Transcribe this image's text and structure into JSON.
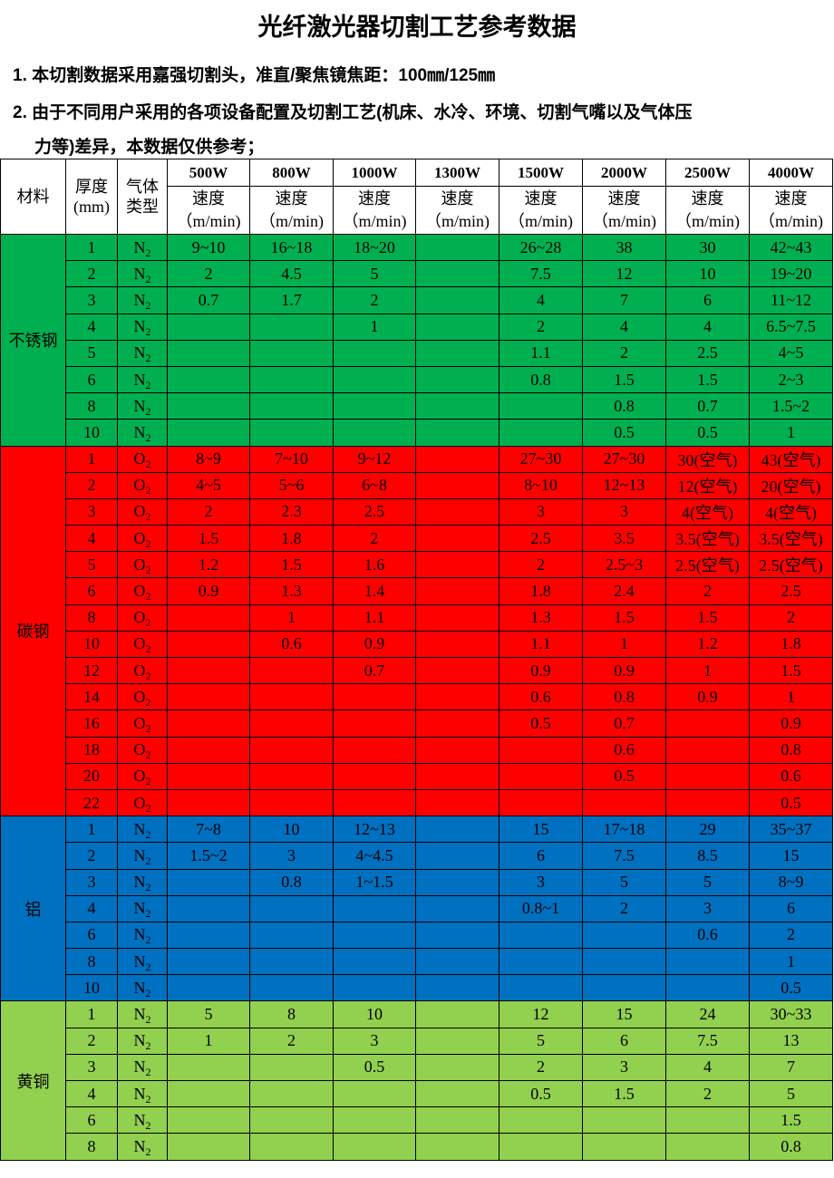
{
  "title": "光纤激光器切割工艺参考数据",
  "notes": [
    "1. 本切割数据采用嘉强切割头，准直/聚焦镜焦距：100㎜/125㎜",
    "2. 由于不同用户采用的各项设备配置及切割工艺(机床、水冷、环境、切割气嘴以及气体压",
    "力等)差异，本数据仅供参考；"
  ],
  "table": {
    "headers": {
      "material": "材料",
      "thickness": "厚度",
      "thickness_unit": "(mm)",
      "gas_line1": "气体",
      "gas_line2": "类型",
      "speed": "速度",
      "speed_unit": "（m/min)",
      "powers": [
        "500W",
        "800W",
        "1000W",
        "1300W",
        "1500W",
        "2000W",
        "2500W",
        "4000W"
      ]
    },
    "groups": [
      {
        "material": "不锈钢",
        "color": "#00b050",
        "gas": "N",
        "gas_sub": "2",
        "rows": [
          [
            "1",
            "9~10",
            "16~18",
            "18~20",
            "",
            "26~28",
            "38",
            "30",
            "42~43"
          ],
          [
            "2",
            "2",
            "4.5",
            "5",
            "",
            "7.5",
            "12",
            "10",
            "19~20"
          ],
          [
            "3",
            "0.7",
            "1.7",
            "2",
            "",
            "4",
            "7",
            "6",
            "11~12"
          ],
          [
            "4",
            "",
            "",
            "1",
            "",
            "2",
            "4",
            "4",
            "6.5~7.5"
          ],
          [
            "5",
            "",
            "",
            "",
            "",
            "1.1",
            "2",
            "2.5",
            "4~5"
          ],
          [
            "6",
            "",
            "",
            "",
            "",
            "0.8",
            "1.5",
            "1.5",
            "2~3"
          ],
          [
            "8",
            "",
            "",
            "",
            "",
            "",
            "0.8",
            "0.7",
            "1.5~2"
          ],
          [
            "10",
            "",
            "",
            "",
            "",
            "",
            "0.5",
            "0.5",
            "1"
          ]
        ]
      },
      {
        "material": "碳钢",
        "color": "#ff0000",
        "gas": "O",
        "gas_sub": "2",
        "rows": [
          [
            "1",
            "8~9",
            "7~10",
            "9~12",
            "",
            "27~30",
            "27~30",
            "30(空气)",
            "43(空气)"
          ],
          [
            "2",
            "4~5",
            "5~6",
            "6~8",
            "",
            "8~10",
            "12~13",
            "12(空气)",
            "20(空气)"
          ],
          [
            "3",
            "2",
            "2.3",
            "2.5",
            "",
            "3",
            "3",
            "4(空气)",
            "4(空气)"
          ],
          [
            "4",
            "1.5",
            "1.8",
            "2",
            "",
            "2.5",
            "3.5",
            "3.5(空气)",
            "3.5(空气)"
          ],
          [
            "5",
            "1.2",
            "1.5",
            "1.6",
            "",
            "2",
            "2.5~3",
            "2.5(空气)",
            "2.5(空气)"
          ],
          [
            "6",
            "0.9",
            "1.3",
            "1.4",
            "",
            "1.8",
            "2.4",
            "2",
            "2.5"
          ],
          [
            "8",
            "",
            "1",
            "1.1",
            "",
            "1.3",
            "1.5",
            "1.5",
            "2"
          ],
          [
            "10",
            "",
            "0.6",
            "0.9",
            "",
            "1.1",
            "1",
            "1.2",
            "1.8"
          ],
          [
            "12",
            "",
            "",
            "0.7",
            "",
            "0.9",
            "0.9",
            "1",
            "1.5"
          ],
          [
            "14",
            "",
            "",
            "",
            "",
            "0.6",
            "0.8",
            "0.9",
            "1"
          ],
          [
            "16",
            "",
            "",
            "",
            "",
            "0.5",
            "0.7",
            "",
            "0.9"
          ],
          [
            "18",
            "",
            "",
            "",
            "",
            "",
            "0.6",
            "",
            "0.8"
          ],
          [
            "20",
            "",
            "",
            "",
            "",
            "",
            "0.5",
            "",
            "0.6"
          ],
          [
            "22",
            "",
            "",
            "",
            "",
            "",
            "",
            "",
            "0.5"
          ]
        ]
      },
      {
        "material": "铝",
        "color": "#0070c0",
        "gas": "N",
        "gas_sub": "2",
        "rows": [
          [
            "1",
            "7~8",
            "10",
            "12~13",
            "",
            "15",
            "17~18",
            "29",
            "35~37"
          ],
          [
            "2",
            "1.5~2",
            "3",
            "4~4.5",
            "",
            "6",
            "7.5",
            "8.5",
            "15"
          ],
          [
            "3",
            "",
            "0.8",
            "1~1.5",
            "",
            "3",
            "5",
            "5",
            "8~9"
          ],
          [
            "4",
            "",
            "",
            "",
            "",
            "0.8~1",
            "2",
            "3",
            "6"
          ],
          [
            "6",
            "",
            "",
            "",
            "",
            "",
            "",
            "0.6",
            "2"
          ],
          [
            "8",
            "",
            "",
            "",
            "",
            "",
            "",
            "",
            "1"
          ],
          [
            "10",
            "",
            "",
            "",
            "",
            "",
            "",
            "",
            "0.5"
          ]
        ]
      },
      {
        "material": "黄铜",
        "color": "#92d050",
        "gas": "N",
        "gas_sub": "2",
        "rows": [
          [
            "1",
            "5",
            "8",
            "10",
            "",
            "12",
            "15",
            "24",
            "30~33"
          ],
          [
            "2",
            "1",
            "2",
            "3",
            "",
            "5",
            "6",
            "7.5",
            "13"
          ],
          [
            "3",
            "",
            "",
            "0.5",
            "",
            "2",
            "3",
            "4",
            "7"
          ],
          [
            "4",
            "",
            "",
            "",
            "",
            "0.5",
            "1.5",
            "2",
            "5"
          ],
          [
            "6",
            "",
            "",
            "",
            "",
            "",
            "",
            "",
            "1.5"
          ],
          [
            "8",
            "",
            "",
            "",
            "",
            "",
            "",
            "",
            "0.8"
          ]
        ]
      }
    ]
  }
}
